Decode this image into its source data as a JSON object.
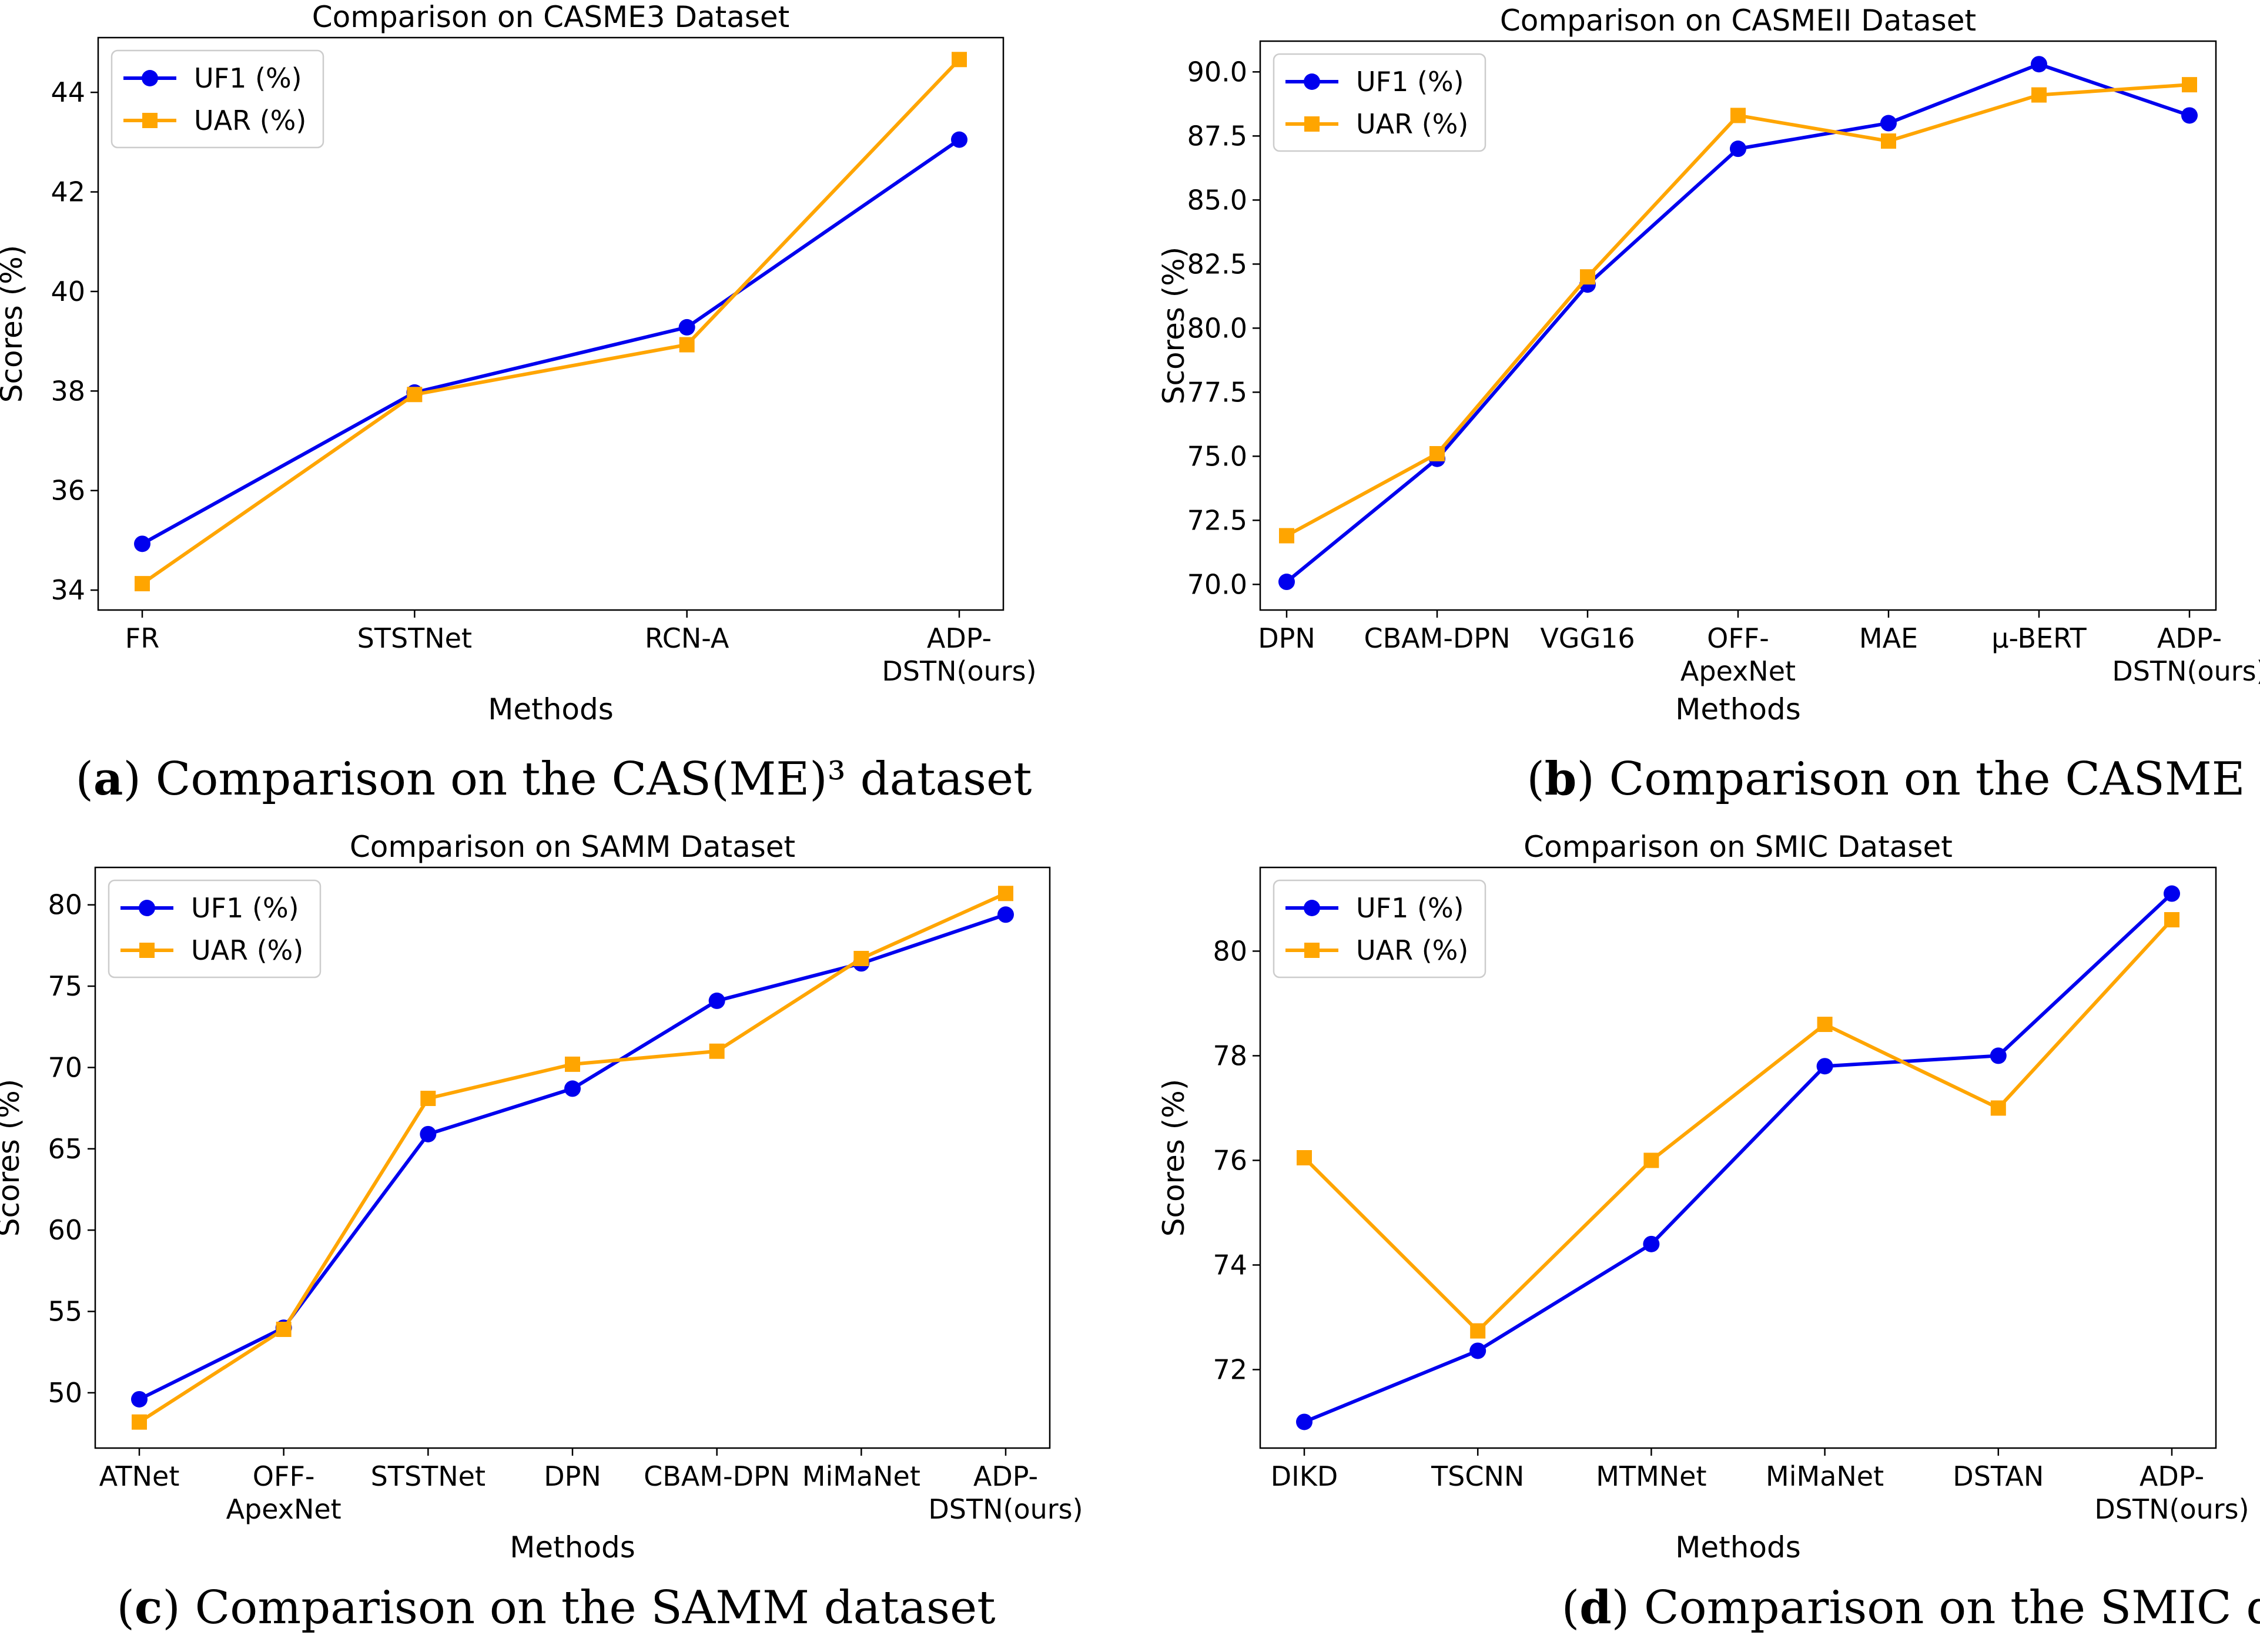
{
  "figure": {
    "background": "#ffffff"
  },
  "chart_data": [
    {
      "type": "line",
      "title": "Comparison on CASME3 Dataset",
      "xlabel": "Methods",
      "ylabel": "Scores (%)",
      "categories": [
        [
          "FR"
        ],
        [
          "STSTNet"
        ],
        [
          "RCN-A"
        ],
        [
          "ADP-",
          "DSTN(ours)"
        ]
      ],
      "ylim": [
        33.6,
        45.1
      ],
      "yticks": [
        34,
        36,
        38,
        40,
        42,
        44
      ],
      "ytick_labels": [
        "34",
        "36",
        "38",
        "40",
        "42",
        "44"
      ],
      "grid": false,
      "legend_position": "top-left",
      "series": [
        {
          "name": "UF1 (%)",
          "color": "#0000ee",
          "marker": "circle",
          "values": [
            34.93,
            37.97,
            39.28,
            43.05
          ]
        },
        {
          "name": "UAR (%)",
          "color": "#ffa500",
          "marker": "square",
          "values": [
            34.13,
            37.93,
            38.93,
            44.66
          ]
        }
      ],
      "caption": {
        "letter": "a",
        "text": "Comparison on the CAS(ME)³ dataset"
      }
    },
    {
      "type": "line",
      "title": "Comparison on CASMEII Dataset",
      "xlabel": "Methods",
      "ylabel": "Scores (%)",
      "categories": [
        [
          "DPN"
        ],
        [
          "CBAM-DPN"
        ],
        [
          "VGG16"
        ],
        [
          "OFF-",
          "ApexNet"
        ],
        [
          "MAE"
        ],
        [
          "µ-BERT"
        ],
        [
          "ADP-",
          "DSTN(ours)"
        ]
      ],
      "ylim": [
        69.0,
        91.2
      ],
      "yticks": [
        70.0,
        72.5,
        75.0,
        77.5,
        80.0,
        82.5,
        85.0,
        87.5,
        90.0
      ],
      "ytick_labels": [
        "70.0",
        "72.5",
        "75.0",
        "77.5",
        "80.0",
        "82.5",
        "85.0",
        "87.5",
        "90.0"
      ],
      "grid": false,
      "legend_position": "top-left",
      "series": [
        {
          "name": "UF1 (%)",
          "color": "#0000ee",
          "marker": "circle",
          "values": [
            70.1,
            74.9,
            81.7,
            87.0,
            88.0,
            90.3,
            88.3
          ]
        },
        {
          "name": "UAR (%)",
          "color": "#ffa500",
          "marker": "square",
          "values": [
            71.9,
            75.1,
            82.0,
            88.3,
            87.3,
            89.1,
            89.5
          ]
        }
      ],
      "caption": {
        "letter": "b",
        "text": "Comparison on the CASME II dataset"
      }
    },
    {
      "type": "line",
      "title": "Comparison on SAMM Dataset",
      "xlabel": "Methods",
      "ylabel": "Scores (%)",
      "categories": [
        [
          "ATNet"
        ],
        [
          "OFF-",
          "ApexNet"
        ],
        [
          "STSTNet"
        ],
        [
          "DPN"
        ],
        [
          "CBAM-DPN"
        ],
        [
          "MiMaNet"
        ],
        [
          "ADP-",
          "DSTN(ours)"
        ]
      ],
      "ylim": [
        46.6,
        82.3
      ],
      "yticks": [
        50,
        55,
        60,
        65,
        70,
        75,
        80
      ],
      "ytick_labels": [
        "50",
        "55",
        "60",
        "65",
        "70",
        "75",
        "80"
      ],
      "grid": false,
      "legend_position": "top-left",
      "series": [
        {
          "name": "UF1 (%)",
          "color": "#0000ee",
          "marker": "circle",
          "values": [
            49.6,
            54.0,
            65.9,
            68.7,
            74.1,
            76.4,
            79.4
          ]
        },
        {
          "name": "UAR (%)",
          "color": "#ffa500",
          "marker": "square",
          "values": [
            48.2,
            53.9,
            68.1,
            70.2,
            71.0,
            76.7,
            80.7
          ]
        }
      ],
      "caption": {
        "letter": "c",
        "text": "Comparison on the SAMM dataset"
      }
    },
    {
      "type": "line",
      "title": "Comparison on SMIC Dataset",
      "xlabel": "Methods",
      "ylabel": "Scores (%)",
      "categories": [
        [
          "DIKD"
        ],
        [
          "TSCNN"
        ],
        [
          "MTMNet"
        ],
        [
          "MiMaNet"
        ],
        [
          "DSTAN"
        ],
        [
          "ADP-",
          "DSTN(ours)"
        ]
      ],
      "ylim": [
        70.5,
        81.6
      ],
      "yticks": [
        72,
        74,
        76,
        78,
        80
      ],
      "ytick_labels": [
        "72",
        "74",
        "76",
        "78",
        "80"
      ],
      "grid": false,
      "legend_position": "top-left",
      "series": [
        {
          "name": "UF1 (%)",
          "color": "#0000ee",
          "marker": "circle",
          "values": [
            71.0,
            72.36,
            74.4,
            77.8,
            78.0,
            81.1
          ]
        },
        {
          "name": "UAR (%)",
          "color": "#ffa500",
          "marker": "square",
          "values": [
            76.05,
            72.74,
            76.0,
            78.6,
            77.0,
            80.6
          ]
        }
      ],
      "caption": {
        "letter": "d",
        "text": "Comparison on the SMIC dataset"
      }
    }
  ]
}
